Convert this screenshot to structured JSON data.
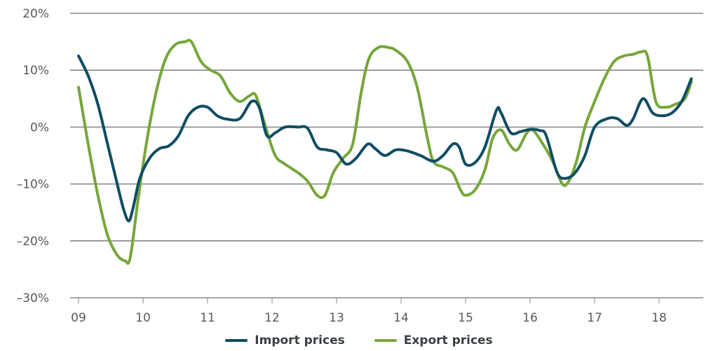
{
  "chart_data": {
    "type": "line",
    "title": "",
    "xlabel": "",
    "ylabel": "",
    "x_tick_labels": [
      "09",
      "10",
      "11",
      "12",
      "13",
      "14",
      "15",
      "16",
      "17",
      "18"
    ],
    "y_tick_labels": [
      "20%",
      "10%",
      "0%",
      "–10%",
      "–20%",
      "–30%"
    ],
    "ylim": [
      -30,
      20
    ],
    "xlim": [
      2009,
      2018.55
    ],
    "grid": "horizontal",
    "legend_position": "bottom-center",
    "series": [
      {
        "name": "Import prices",
        "color": "#0f4d63",
        "points": [
          [
            2009.0,
            12.5
          ],
          [
            2009.15,
            9.0
          ],
          [
            2009.3,
            4.0
          ],
          [
            2009.45,
            -3.0
          ],
          [
            2009.6,
            -10.0
          ],
          [
            2009.7,
            -14.5
          ],
          [
            2009.78,
            -16.5
          ],
          [
            2009.85,
            -14.0
          ],
          [
            2009.95,
            -9.0
          ],
          [
            2010.1,
            -5.5
          ],
          [
            2010.25,
            -3.8
          ],
          [
            2010.4,
            -3.3
          ],
          [
            2010.55,
            -1.5
          ],
          [
            2010.7,
            2.0
          ],
          [
            2010.85,
            3.5
          ],
          [
            2011.0,
            3.5
          ],
          [
            2011.15,
            2.0
          ],
          [
            2011.3,
            1.4
          ],
          [
            2011.5,
            1.5
          ],
          [
            2011.68,
            4.5
          ],
          [
            2011.8,
            3.5
          ],
          [
            2011.92,
            -1.5
          ],
          [
            2012.05,
            -1.0
          ],
          [
            2012.2,
            0.0
          ],
          [
            2012.4,
            0.0
          ],
          [
            2012.55,
            -0.2
          ],
          [
            2012.7,
            -3.5
          ],
          [
            2012.85,
            -4.0
          ],
          [
            2013.0,
            -4.5
          ],
          [
            2013.15,
            -6.5
          ],
          [
            2013.3,
            -5.5
          ],
          [
            2013.48,
            -3.0
          ],
          [
            2013.6,
            -3.8
          ],
          [
            2013.75,
            -5.0
          ],
          [
            2013.92,
            -4.0
          ],
          [
            2014.1,
            -4.2
          ],
          [
            2014.3,
            -5.0
          ],
          [
            2014.5,
            -6.0
          ],
          [
            2014.65,
            -5.0
          ],
          [
            2014.8,
            -3.0
          ],
          [
            2014.9,
            -3.5
          ],
          [
            2015.0,
            -6.5
          ],
          [
            2015.15,
            -6.2
          ],
          [
            2015.3,
            -3.5
          ],
          [
            2015.48,
            3.0
          ],
          [
            2015.55,
            2.5
          ],
          [
            2015.7,
            -1.0
          ],
          [
            2015.85,
            -0.8
          ],
          [
            2016.0,
            -0.4
          ],
          [
            2016.15,
            -0.6
          ],
          [
            2016.25,
            -1.5
          ],
          [
            2016.42,
            -8.0
          ],
          [
            2016.55,
            -9.0
          ],
          [
            2016.7,
            -8.0
          ],
          [
            2016.85,
            -5.0
          ],
          [
            2017.0,
            0.0
          ],
          [
            2017.2,
            1.5
          ],
          [
            2017.35,
            1.5
          ],
          [
            2017.5,
            0.3
          ],
          [
            2017.6,
            1.5
          ],
          [
            2017.75,
            5.0
          ],
          [
            2017.9,
            2.5
          ],
          [
            2018.05,
            2.0
          ],
          [
            2018.2,
            2.5
          ],
          [
            2018.35,
            4.5
          ],
          [
            2018.5,
            8.5
          ]
        ]
      },
      {
        "name": "Export prices",
        "color": "#76a63a",
        "points": [
          [
            2009.0,
            7.0
          ],
          [
            2009.15,
            -3.0
          ],
          [
            2009.3,
            -12.0
          ],
          [
            2009.45,
            -19.0
          ],
          [
            2009.6,
            -22.5
          ],
          [
            2009.72,
            -23.5
          ],
          [
            2009.8,
            -23.0
          ],
          [
            2009.92,
            -13.0
          ],
          [
            2010.05,
            -3.0
          ],
          [
            2010.2,
            6.0
          ],
          [
            2010.35,
            12.0
          ],
          [
            2010.5,
            14.5
          ],
          [
            2010.65,
            15.0
          ],
          [
            2010.75,
            15.0
          ],
          [
            2010.9,
            11.5
          ],
          [
            2011.05,
            10.0
          ],
          [
            2011.2,
            9.0
          ],
          [
            2011.35,
            6.0
          ],
          [
            2011.5,
            4.5
          ],
          [
            2011.65,
            5.5
          ],
          [
            2011.75,
            5.5
          ],
          [
            2011.9,
            0.0
          ],
          [
            2012.05,
            -5.0
          ],
          [
            2012.2,
            -6.5
          ],
          [
            2012.4,
            -8.0
          ],
          [
            2012.55,
            -9.5
          ],
          [
            2012.7,
            -12.0
          ],
          [
            2012.82,
            -12.0
          ],
          [
            2012.95,
            -8.0
          ],
          [
            2013.1,
            -5.5
          ],
          [
            2013.25,
            -3.0
          ],
          [
            2013.38,
            6.0
          ],
          [
            2013.5,
            12.0
          ],
          [
            2013.65,
            14.0
          ],
          [
            2013.8,
            14.0
          ],
          [
            2013.92,
            13.5
          ],
          [
            2014.1,
            11.5
          ],
          [
            2014.25,
            7.0
          ],
          [
            2014.4,
            -1.5
          ],
          [
            2014.5,
            -6.0
          ],
          [
            2014.65,
            -7.0
          ],
          [
            2014.8,
            -8.0
          ],
          [
            2014.92,
            -11.0
          ],
          [
            2015.0,
            -12.0
          ],
          [
            2015.15,
            -11.0
          ],
          [
            2015.3,
            -7.5
          ],
          [
            2015.42,
            -2.0
          ],
          [
            2015.55,
            -0.5
          ],
          [
            2015.68,
            -3.0
          ],
          [
            2015.8,
            -4.0
          ],
          [
            2015.95,
            -1.0
          ],
          [
            2016.05,
            -0.6
          ],
          [
            2016.2,
            -3.0
          ],
          [
            2016.35,
            -6.0
          ],
          [
            2016.5,
            -10.0
          ],
          [
            2016.6,
            -9.5
          ],
          [
            2016.72,
            -6.0
          ],
          [
            2016.85,
            0.0
          ],
          [
            2017.0,
            4.5
          ],
          [
            2017.15,
            8.5
          ],
          [
            2017.3,
            11.5
          ],
          [
            2017.45,
            12.5
          ],
          [
            2017.6,
            12.8
          ],
          [
            2017.72,
            13.2
          ],
          [
            2017.82,
            12.5
          ],
          [
            2017.95,
            4.5
          ],
          [
            2018.1,
            3.5
          ],
          [
            2018.25,
            4.0
          ],
          [
            2018.4,
            5.0
          ],
          [
            2018.5,
            8.0
          ]
        ]
      }
    ]
  }
}
